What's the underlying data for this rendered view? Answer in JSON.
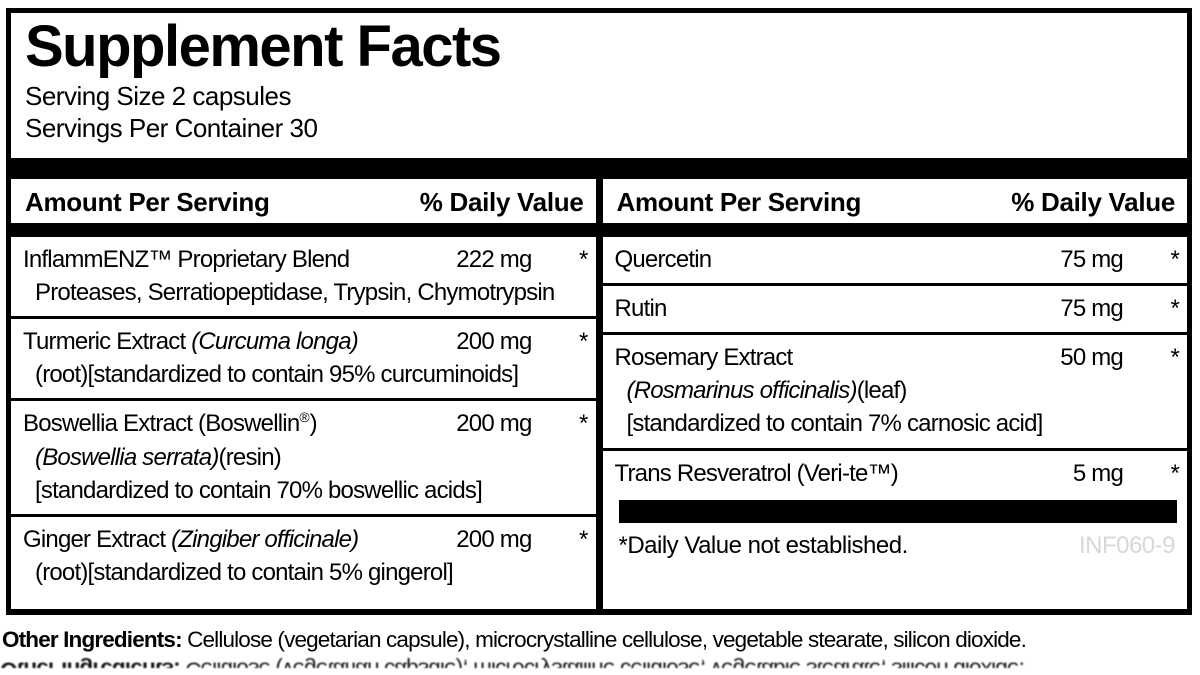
{
  "colors": {
    "ink": "#000000",
    "paper": "#ffffff",
    "product_code_gray": "#d8d8d8"
  },
  "title": "Supplement Facts",
  "serving": {
    "size": "Serving Size 2 capsules",
    "per_container": "Servings Per Container 30"
  },
  "table": {
    "header": {
      "amount_label": "Amount Per Serving",
      "daily_value_label": "% Daily Value"
    },
    "left_rows": [
      {
        "line1": [
          {
            "t": "InflammENZ™ Proprietary Blend"
          }
        ],
        "amount": "222 mg",
        "dv": "*",
        "sublines": [
          [
            {
              "t": "Proteases, Serratiopeptidase, Trypsin, Chymotrypsin"
            }
          ]
        ]
      },
      {
        "line1": [
          {
            "t": "Turmeric Extract "
          },
          {
            "t": "(Curcuma longa)",
            "i": true
          }
        ],
        "amount": "200 mg",
        "dv": "*",
        "sublines": [
          [
            {
              "t": "(root)[standardized to contain 95% curcuminoids]"
            }
          ]
        ]
      },
      {
        "line1": [
          {
            "t": "Boswellia Extract (Boswellin"
          },
          {
            "t": "®",
            "sup": true
          },
          {
            "t": ")"
          }
        ],
        "amount": "200 mg",
        "dv": "*",
        "sublines": [
          [
            {
              "t": "(Boswellia serrata)",
              "i": true
            },
            {
              "t": "(resin)"
            }
          ],
          [
            {
              "t": "[standardized to contain 70% boswellic acids]"
            }
          ]
        ]
      },
      {
        "line1": [
          {
            "t": "Ginger Extract "
          },
          {
            "t": "(Zingiber officinale)",
            "i": true
          }
        ],
        "amount": "200 mg",
        "dv": "*",
        "sublines": [
          [
            {
              "t": "(root)[standardized to contain 5% gingerol]"
            }
          ]
        ]
      }
    ],
    "right_rows": [
      {
        "line1": [
          {
            "t": "Quercetin"
          }
        ],
        "amount": "75 mg",
        "dv": "*",
        "sublines": []
      },
      {
        "line1": [
          {
            "t": "Rutin"
          }
        ],
        "amount": "75 mg",
        "dv": "*",
        "sublines": []
      },
      {
        "line1": [
          {
            "t": "Rosemary Extract"
          }
        ],
        "amount": "50 mg",
        "dv": "*",
        "sublines": [
          [
            {
              "t": "(Rosmarinus officinalis)",
              "i": true
            },
            {
              "t": "(leaf)"
            }
          ],
          [
            {
              "t": "[standardized to contain 7% carnosic acid]"
            }
          ]
        ]
      },
      {
        "line1": [
          {
            "t": "Trans Resveratrol (Veri-te™)"
          }
        ],
        "amount": "5 mg",
        "dv": "*",
        "sublines": []
      }
    ]
  },
  "footnote": "*Daily Value not established.",
  "product_code": "INF060-9",
  "other_ingredients": {
    "label": "Other Ingredients:",
    "text": " Cellulose (vegetarian capsule), microcrystalline cellulose, vegetable stearate, silicon dioxide."
  }
}
